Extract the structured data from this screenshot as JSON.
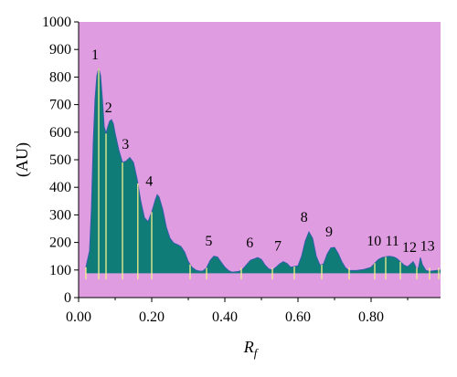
{
  "chart_data": {
    "type": "area",
    "title": "",
    "xlabel_main": "R",
    "xlabel_sub": "f",
    "ylabel": "(AU)",
    "xlim": [
      0,
      0.99
    ],
    "ylim": [
      0,
      1000
    ],
    "x_ticks": [
      "0.00",
      "0.20",
      "0.40",
      "0.60",
      "0.80"
    ],
    "x_tick_values": [
      0,
      0.2,
      0.4,
      0.6,
      0.8
    ],
    "y_ticks": [
      "0",
      "100",
      "200",
      "300",
      "400",
      "500",
      "600",
      "700",
      "800",
      "900",
      "1000"
    ],
    "y_tick_values": [
      0,
      100,
      200,
      300,
      400,
      500,
      600,
      700,
      800,
      900,
      1000
    ],
    "baseline": 88,
    "plot_background": "#DF9CE0",
    "fill_color": "#0F7C78",
    "line_color": "#2F5FA8",
    "marker_color": "#F4F08A",
    "profile": [
      [
        0.02,
        110
      ],
      [
        0.03,
        170
      ],
      [
        0.035,
        320
      ],
      [
        0.04,
        560
      ],
      [
        0.045,
        720
      ],
      [
        0.05,
        805
      ],
      [
        0.055,
        832
      ],
      [
        0.06,
        805
      ],
      [
        0.065,
        720
      ],
      [
        0.07,
        620
      ],
      [
        0.075,
        595
      ],
      [
        0.08,
        620
      ],
      [
        0.085,
        640
      ],
      [
        0.09,
        645
      ],
      [
        0.095,
        630
      ],
      [
        0.1,
        595
      ],
      [
        0.11,
        535
      ],
      [
        0.12,
        490
      ],
      [
        0.13,
        495
      ],
      [
        0.14,
        508
      ],
      [
        0.15,
        490
      ],
      [
        0.16,
        430
      ],
      [
        0.17,
        350
      ],
      [
        0.18,
        290
      ],
      [
        0.19,
        275
      ],
      [
        0.2,
        310
      ],
      [
        0.21,
        355
      ],
      [
        0.215,
        373
      ],
      [
        0.22,
        365
      ],
      [
        0.23,
        320
      ],
      [
        0.24,
        255
      ],
      [
        0.25,
        215
      ],
      [
        0.26,
        198
      ],
      [
        0.27,
        192
      ],
      [
        0.28,
        185
      ],
      [
        0.29,
        165
      ],
      [
        0.3,
        130
      ],
      [
        0.31,
        110
      ],
      [
        0.32,
        100
      ],
      [
        0.33,
        96
      ],
      [
        0.34,
        96
      ],
      [
        0.35,
        108
      ],
      [
        0.36,
        135
      ],
      [
        0.37,
        150
      ],
      [
        0.38,
        147
      ],
      [
        0.39,
        128
      ],
      [
        0.4,
        110
      ],
      [
        0.41,
        98
      ],
      [
        0.42,
        92
      ],
      [
        0.44,
        95
      ],
      [
        0.45,
        105
      ],
      [
        0.47,
        135
      ],
      [
        0.49,
        145
      ],
      [
        0.5,
        138
      ],
      [
        0.51,
        118
      ],
      [
        0.52,
        104
      ],
      [
        0.53,
        100
      ],
      [
        0.54,
        110
      ],
      [
        0.55,
        122
      ],
      [
        0.56,
        130
      ],
      [
        0.57,
        124
      ],
      [
        0.58,
        110
      ],
      [
        0.6,
        115
      ],
      [
        0.61,
        150
      ],
      [
        0.62,
        205
      ],
      [
        0.63,
        238
      ],
      [
        0.64,
        215
      ],
      [
        0.65,
        150
      ],
      [
        0.66,
        118
      ],
      [
        0.67,
        122
      ],
      [
        0.68,
        158
      ],
      [
        0.69,
        180
      ],
      [
        0.7,
        182
      ],
      [
        0.71,
        160
      ],
      [
        0.72,
        130
      ],
      [
        0.73,
        108
      ],
      [
        0.74,
        98
      ],
      [
        0.76,
        98
      ],
      [
        0.78,
        102
      ],
      [
        0.8,
        110
      ],
      [
        0.81,
        125
      ],
      [
        0.82,
        138
      ],
      [
        0.83,
        145
      ],
      [
        0.84,
        148
      ],
      [
        0.85,
        150
      ],
      [
        0.86,
        148
      ],
      [
        0.87,
        142
      ],
      [
        0.88,
        130
      ],
      [
        0.89,
        118
      ],
      [
        0.9,
        112
      ],
      [
        0.91,
        124
      ],
      [
        0.915,
        130
      ],
      [
        0.92,
        118
      ],
      [
        0.925,
        100
      ],
      [
        0.93,
        110
      ],
      [
        0.935,
        145
      ],
      [
        0.94,
        120
      ],
      [
        0.95,
        98
      ],
      [
        0.96,
        95
      ],
      [
        0.99,
        100
      ]
    ],
    "marker_x": [
      0.02,
      0.055,
      0.075,
      0.12,
      0.162,
      0.2,
      0.305,
      0.35,
      0.445,
      0.53,
      0.59,
      0.665,
      0.74,
      0.81,
      0.84,
      0.88,
      0.925,
      0.96,
      0.985
    ],
    "peaks": [
      {
        "label": "1",
        "x": 0.045,
        "y": 865
      },
      {
        "label": "2",
        "x": 0.082,
        "y": 672
      },
      {
        "label": "3",
        "x": 0.128,
        "y": 540
      },
      {
        "label": "4",
        "x": 0.193,
        "y": 405
      },
      {
        "label": "5",
        "x": 0.356,
        "y": 188
      },
      {
        "label": "6",
        "x": 0.468,
        "y": 182
      },
      {
        "label": "7",
        "x": 0.545,
        "y": 170
      },
      {
        "label": "8",
        "x": 0.617,
        "y": 275
      },
      {
        "label": "9",
        "x": 0.685,
        "y": 222
      },
      {
        "label": "10",
        "x": 0.808,
        "y": 188
      },
      {
        "label": "11",
        "x": 0.858,
        "y": 188
      },
      {
        "label": "12",
        "x": 0.905,
        "y": 165
      },
      {
        "label": "13",
        "x": 0.954,
        "y": 170
      }
    ]
  }
}
